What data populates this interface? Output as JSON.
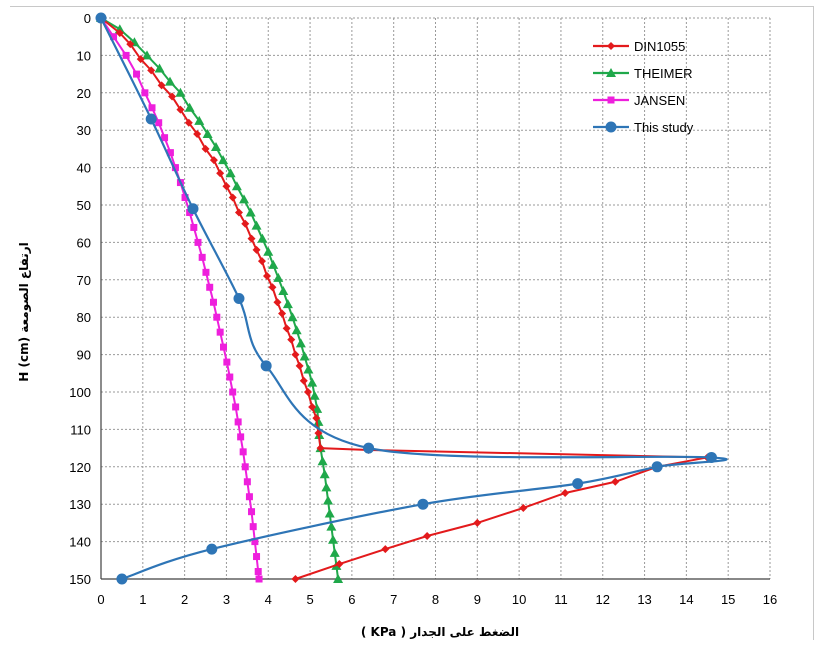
{
  "chart_data": {
    "type": "line",
    "title": "",
    "xlabel": "الضغط على الجدار   ( KPa )",
    "ylabel": "H (cm)   ارتفاع الصومعة",
    "xlim": [
      0,
      16
    ],
    "ylim": [
      0,
      150
    ],
    "y_inverted": true,
    "grid": true,
    "legend_position": "top-right",
    "x_ticks": [
      "0",
      "1",
      "2",
      "3",
      "4",
      "5",
      "6",
      "7",
      "8",
      "9",
      "10",
      "11",
      "12",
      "13",
      "14",
      "15",
      "16"
    ],
    "y_ticks": [
      "0",
      "10",
      "20",
      "30",
      "40",
      "50",
      "60",
      "70",
      "80",
      "90",
      "100",
      "110",
      "120",
      "130",
      "140",
      "150"
    ],
    "series": [
      {
        "name": "DIN1055",
        "color": "#e31a1c",
        "marker": "diamond",
        "points": [
          [
            0,
            0
          ],
          [
            0.45,
            4
          ],
          [
            0.7,
            7
          ],
          [
            0.95,
            11
          ],
          [
            1.2,
            14
          ],
          [
            1.45,
            18
          ],
          [
            1.7,
            21
          ],
          [
            1.9,
            24.5
          ],
          [
            2.1,
            28
          ],
          [
            2.3,
            31
          ],
          [
            2.5,
            35
          ],
          [
            2.7,
            38
          ],
          [
            2.85,
            41.5
          ],
          [
            3.0,
            45
          ],
          [
            3.15,
            48
          ],
          [
            3.3,
            52
          ],
          [
            3.45,
            55
          ],
          [
            3.6,
            59
          ],
          [
            3.72,
            62
          ],
          [
            3.85,
            65
          ],
          [
            3.97,
            69
          ],
          [
            4.1,
            72
          ],
          [
            4.22,
            76
          ],
          [
            4.33,
            79
          ],
          [
            4.44,
            83
          ],
          [
            4.55,
            86
          ],
          [
            4.65,
            90
          ],
          [
            4.75,
            93
          ],
          [
            4.85,
            97
          ],
          [
            4.95,
            100
          ],
          [
            5.05,
            104
          ],
          [
            5.15,
            107
          ],
          [
            5.2,
            111
          ],
          [
            5.25,
            115
          ],
          [
            6.4,
            115.5
          ],
          [
            14.5,
            117.5
          ],
          [
            13.3,
            120
          ],
          [
            12.3,
            124
          ],
          [
            11.1,
            127
          ],
          [
            10.1,
            131
          ],
          [
            9.0,
            135
          ],
          [
            7.8,
            138.5
          ],
          [
            6.8,
            142
          ],
          [
            5.7,
            146
          ],
          [
            4.65,
            150
          ]
        ]
      },
      {
        "name": "THEIMER",
        "color": "#1fa84a",
        "marker": "triangle",
        "points": [
          [
            0,
            0
          ],
          [
            0.45,
            3
          ],
          [
            0.8,
            6.5
          ],
          [
            1.1,
            10
          ],
          [
            1.4,
            13.5
          ],
          [
            1.65,
            17
          ],
          [
            1.9,
            20
          ],
          [
            2.12,
            24
          ],
          [
            2.35,
            27.5
          ],
          [
            2.55,
            31
          ],
          [
            2.75,
            34.5
          ],
          [
            2.92,
            38
          ],
          [
            3.1,
            41.5
          ],
          [
            3.25,
            45
          ],
          [
            3.42,
            48.5
          ],
          [
            3.58,
            52
          ],
          [
            3.72,
            55.5
          ],
          [
            3.86,
            59
          ],
          [
            4.0,
            62.5
          ],
          [
            4.12,
            66
          ],
          [
            4.24,
            69.5
          ],
          [
            4.36,
            73
          ],
          [
            4.47,
            76.5
          ],
          [
            4.58,
            80
          ],
          [
            4.68,
            83.5
          ],
          [
            4.78,
            87
          ],
          [
            4.87,
            90.5
          ],
          [
            4.96,
            94
          ],
          [
            5.05,
            97.5
          ],
          [
            5.11,
            101
          ],
          [
            5.17,
            104.5
          ],
          [
            5.2,
            108
          ],
          [
            5.22,
            111.5
          ],
          [
            5.25,
            115
          ],
          [
            5.3,
            118.5
          ],
          [
            5.35,
            122
          ],
          [
            5.39,
            125.5
          ],
          [
            5.43,
            129
          ],
          [
            5.47,
            132.5
          ],
          [
            5.51,
            136
          ],
          [
            5.55,
            139.5
          ],
          [
            5.59,
            143
          ],
          [
            5.63,
            146.5
          ],
          [
            5.67,
            150
          ]
        ]
      },
      {
        "name": "JANSEN",
        "color": "#ee1fdc",
        "marker": "square",
        "points": [
          [
            0,
            0
          ],
          [
            0.3,
            5
          ],
          [
            0.6,
            10
          ],
          [
            0.85,
            15
          ],
          [
            1.05,
            20
          ],
          [
            1.22,
            24
          ],
          [
            1.38,
            28
          ],
          [
            1.52,
            32
          ],
          [
            1.66,
            36
          ],
          [
            1.78,
            40
          ],
          [
            1.9,
            44
          ],
          [
            2.01,
            48
          ],
          [
            2.12,
            52
          ],
          [
            2.22,
            56
          ],
          [
            2.32,
            60
          ],
          [
            2.42,
            64
          ],
          [
            2.51,
            68
          ],
          [
            2.6,
            72
          ],
          [
            2.69,
            76
          ],
          [
            2.77,
            80
          ],
          [
            2.85,
            84
          ],
          [
            2.93,
            88
          ],
          [
            3.01,
            92
          ],
          [
            3.08,
            96
          ],
          [
            3.15,
            100
          ],
          [
            3.22,
            104
          ],
          [
            3.28,
            108
          ],
          [
            3.34,
            112
          ],
          [
            3.4,
            116
          ],
          [
            3.45,
            120
          ],
          [
            3.5,
            124
          ],
          [
            3.55,
            128
          ],
          [
            3.6,
            132
          ],
          [
            3.64,
            136
          ],
          [
            3.68,
            140
          ],
          [
            3.72,
            144
          ],
          [
            3.76,
            148
          ],
          [
            3.78,
            150
          ]
        ]
      },
      {
        "name": "This study",
        "color": "#2e75b6",
        "marker": "circle",
        "points": [
          [
            0,
            0
          ],
          [
            1.2,
            27
          ],
          [
            2.2,
            51
          ],
          [
            3.3,
            75
          ],
          [
            3.95,
            93
          ],
          [
            6.4,
            115
          ],
          [
            14.6,
            117.5
          ],
          [
            13.3,
            120
          ],
          [
            11.4,
            124.5
          ],
          [
            7.7,
            130
          ],
          [
            2.65,
            142
          ],
          [
            0.5,
            150
          ]
        ],
        "marked": [
          [
            0,
            0
          ],
          [
            1.2,
            27
          ],
          [
            2.2,
            51
          ],
          [
            3.3,
            75
          ],
          [
            3.95,
            93
          ],
          [
            6.4,
            115
          ],
          [
            14.6,
            117.5
          ],
          [
            13.3,
            120
          ],
          [
            11.4,
            124.5
          ],
          [
            7.7,
            130
          ],
          [
            2.65,
            142
          ],
          [
            0.5,
            150
          ]
        ]
      }
    ]
  }
}
